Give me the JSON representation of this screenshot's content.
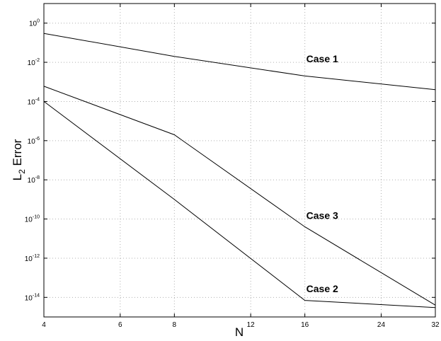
{
  "chart_data": {
    "type": "line",
    "xscale": "log",
    "yscale": "log",
    "xlabel": "N",
    "ylabel": "L2 Error",
    "ylabel_main": "L",
    "ylabel_sub": "2",
    "ylabel_rest": " Error",
    "xlim": [
      4,
      32
    ],
    "ylim": [
      1e-15,
      10.0
    ],
    "xticks": [
      4,
      6,
      8,
      12,
      16,
      24,
      32
    ],
    "xtick_labels": [
      "4",
      "6",
      "8",
      "12",
      "16",
      "24",
      "32"
    ],
    "yticks": [
      {
        "value": 1e-14,
        "base": "10",
        "exp": "-14"
      },
      {
        "value": 1e-12,
        "base": "10",
        "exp": "-12"
      },
      {
        "value": 1e-10,
        "base": "10",
        "exp": "-10"
      },
      {
        "value": 1e-08,
        "base": "10",
        "exp": "-8"
      },
      {
        "value": 1e-06,
        "base": "10",
        "exp": "-6"
      },
      {
        "value": 0.0001,
        "base": "10",
        "exp": "-4"
      },
      {
        "value": 0.01,
        "base": "10",
        "exp": "-2"
      },
      {
        "value": 1,
        "base": "10",
        "exp": "0"
      }
    ],
    "grid": true,
    "series": [
      {
        "name": "Case 1",
        "x": [
          4,
          8,
          16,
          32
        ],
        "y": [
          0.3,
          0.02,
          0.002,
          0.0004
        ]
      },
      {
        "name": "Case 2",
        "x": [
          4,
          8,
          16,
          32
        ],
        "y": [
          0.0001,
          1e-09,
          7e-15,
          3e-15
        ]
      },
      {
        "name": "Case 3",
        "x": [
          4,
          8,
          16,
          32
        ],
        "y": [
          0.0006,
          2e-06,
          4e-11,
          4e-15
        ]
      }
    ],
    "annotations": [
      {
        "text": "Case 1",
        "x": 16,
        "y": 0.01
      },
      {
        "text": "Case 3",
        "x": 16,
        "y": 1e-10
      },
      {
        "text": "Case 2",
        "x": 16,
        "y": 1.8e-14
      }
    ]
  }
}
